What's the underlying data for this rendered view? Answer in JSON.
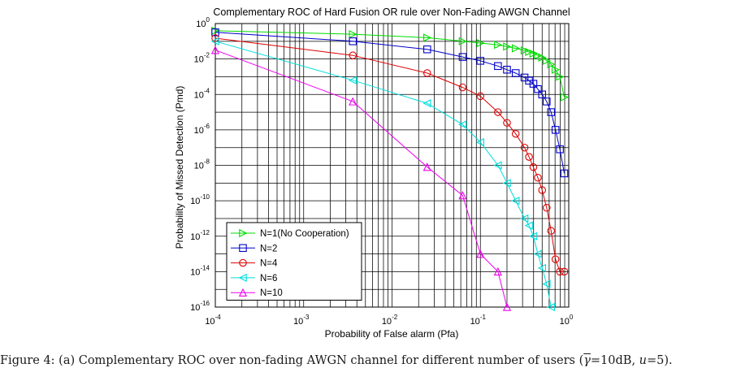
{
  "chart_data": {
    "type": "line",
    "title": "Complementary ROC of Hard Fusion OR rule over Non-Fading AWGN Channel",
    "xlabel": "Probability of False alarm (Pfa)",
    "ylabel": "Probability of Missed Detection (Pmd)",
    "x_scale": "log",
    "y_scale": "log",
    "xlim": [
      0.0001,
      1
    ],
    "ylim": [
      1e-16,
      1
    ],
    "x_ticks": [
      {
        "label": "10",
        "exp": "-4",
        "value": 0.0001
      },
      {
        "label": "10",
        "exp": "-3",
        "value": 0.001
      },
      {
        "label": "10",
        "exp": "-2",
        "value": 0.01
      },
      {
        "label": "10",
        "exp": "-1",
        "value": 0.1
      },
      {
        "label": "10",
        "exp": "0",
        "value": 1
      }
    ],
    "y_ticks": [
      {
        "label": "10",
        "exp": "0",
        "value": 1
      },
      {
        "label": "10",
        "exp": "-2",
        "value": 0.01
      },
      {
        "label": "10",
        "exp": "-4",
        "value": 0.0001
      },
      {
        "label": "10",
        "exp": "-6",
        "value": 1e-06
      },
      {
        "label": "10",
        "exp": "-8",
        "value": 1e-08
      },
      {
        "label": "10",
        "exp": "-10",
        "value": 1e-10
      },
      {
        "label": "10",
        "exp": "-12",
        "value": 1e-12
      },
      {
        "label": "10",
        "exp": "-14",
        "value": 1e-14
      },
      {
        "label": "10",
        "exp": "-16",
        "value": 1e-16
      }
    ],
    "grid": true,
    "legend_position": "bottom-left",
    "series": [
      {
        "name": "N=1(No Cooperation)",
        "color": "#00dd00",
        "marker": "triangle-right",
        "x": [
          0.0001,
          0.0036,
          0.025,
          0.063,
          0.1,
          0.158,
          0.2,
          0.251,
          0.316,
          0.355,
          0.398,
          0.447,
          0.5,
          0.562,
          0.631,
          0.708,
          0.794,
          0.891
        ],
        "y": [
          0.39,
          0.25,
          0.16,
          0.1,
          0.079,
          0.063,
          0.05,
          0.04,
          0.03,
          0.025,
          0.02,
          0.016,
          0.012,
          0.008,
          0.005,
          0.0025,
          0.001,
          7e-05
        ]
      },
      {
        "name": "N=2",
        "color": "#0000cc",
        "marker": "square",
        "x": [
          0.0001,
          0.0036,
          0.025,
          0.063,
          0.1,
          0.158,
          0.2,
          0.251,
          0.316,
          0.355,
          0.398,
          0.447,
          0.5,
          0.562,
          0.631,
          0.708,
          0.794,
          0.891
        ],
        "y": [
          0.32,
          0.1,
          0.035,
          0.013,
          0.0079,
          0.004,
          0.0025,
          0.0016,
          0.0009,
          0.0006,
          0.0004,
          0.0002,
          0.0001,
          4e-05,
          1e-05,
          1e-06,
          8e-08,
          3.5e-09
        ]
      },
      {
        "name": "N=4",
        "color": "#dd0000",
        "marker": "circle",
        "x": [
          0.0001,
          0.0036,
          0.025,
          0.063,
          0.1,
          0.158,
          0.2,
          0.251,
          0.316,
          0.355,
          0.398,
          0.447,
          0.5,
          0.562,
          0.631,
          0.708,
          0.794,
          0.891
        ],
        "y": [
          0.15,
          0.016,
          0.0016,
          0.00025,
          7.94e-05,
          1e-05,
          2.5e-06,
          6e-07,
          1e-07,
          3e-08,
          7.9e-09,
          2e-09,
          4e-10,
          4e-11,
          2e-12,
          5e-14,
          1e-14,
          1e-14
        ]
      },
      {
        "name": "N=6",
        "color": "#00dddd",
        "marker": "triangle-left",
        "x": [
          0.0001,
          0.0036,
          0.025,
          0.063,
          0.1,
          0.158,
          0.2,
          0.251,
          0.316,
          0.355,
          0.398,
          0.447,
          0.5,
          0.562,
          0.631
        ],
        "y": [
          0.1,
          0.00063,
          3.16e-05,
          2e-06,
          2e-07,
          1e-08,
          1e-09,
          1e-10,
          1e-11,
          4e-12,
          1e-12,
          1e-13,
          1.6e-14,
          2e-15,
          1e-16
        ]
      },
      {
        "name": "N=10",
        "color": "#ee00ee",
        "marker": "triangle-up",
        "x": [
          0.0001,
          0.0036,
          0.025,
          0.063,
          0.1,
          0.158,
          0.2
        ],
        "y": [
          0.0316,
          4e-05,
          8e-09,
          2e-10,
          1e-13,
          1e-14,
          1e-16
        ]
      }
    ]
  },
  "caption": {
    "prefix": "Figure 4: (a) Complementary ROC over non-fading AWGN channel for different number of users (",
    "gamma_symbol": "γ",
    "middle": "=10dB, ",
    "u_symbol": "u",
    "suffix": "=5)."
  }
}
